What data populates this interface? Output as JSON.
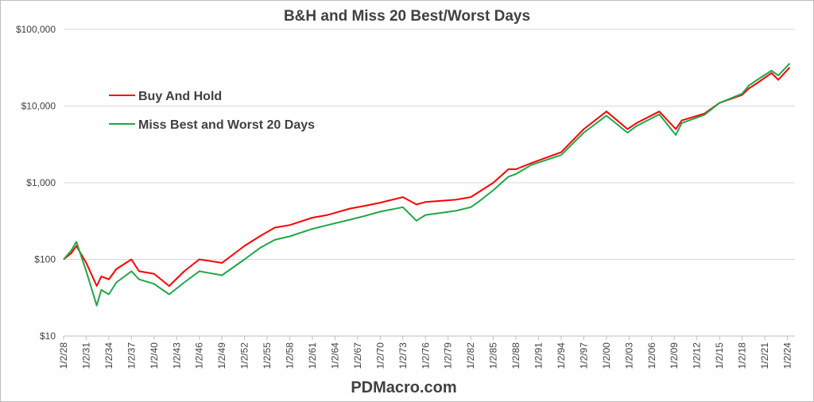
{
  "chart_data": {
    "type": "line",
    "title": "B&H and Miss 20 Best/Worst Days",
    "footer": "PDMacro.com",
    "y_scale": "log",
    "ylim": [
      10,
      100000
    ],
    "y_ticks": [
      10,
      100,
      1000,
      10000,
      100000
    ],
    "y_tick_labels": [
      "$10",
      "$100",
      "$1,000",
      "$10,000",
      "$100,000"
    ],
    "grid": "horizontal",
    "legend_position": "upper-left",
    "x_tick_labels": [
      "1/2/28",
      "1/2/31",
      "1/2/34",
      "1/2/37",
      "1/2/40",
      "1/2/43",
      "1/2/46",
      "1/2/49",
      "1/2/52",
      "1/2/55",
      "1/2/58",
      "1/2/61",
      "1/2/64",
      "1/2/67",
      "1/2/70",
      "1/2/73",
      "1/2/76",
      "1/2/79",
      "1/2/82",
      "1/2/85",
      "1/2/88",
      "1/2/91",
      "1/2/94",
      "1/2/97",
      "1/2/00",
      "1/2/03",
      "1/2/06",
      "1/2/09",
      "1/2/12",
      "1/2/15",
      "1/2/18",
      "1/2/21",
      "1/2/24"
    ],
    "x": [
      "1928",
      "1929",
      "1929.7",
      "1931",
      "1932.4",
      "1933",
      "1934",
      "1935",
      "1937",
      "1938",
      "1940",
      "1942",
      "1944",
      "1946",
      "1949",
      "1952",
      "1954",
      "1956",
      "1958",
      "1961",
      "1963",
      "1966",
      "1968",
      "1970",
      "1973",
      "1974.8",
      "1976",
      "1980",
      "1982",
      "1983",
      "1985",
      "1987",
      "1988",
      "1990",
      "1994",
      "1997",
      "2000",
      "2002.8",
      "2004",
      "2007",
      "2009.2",
      "2010",
      "2013",
      "2015",
      "2018",
      "2018.9",
      "2020",
      "2021.9",
      "2022.8",
      "2024.3"
    ],
    "series": [
      {
        "name": "Buy And Hold",
        "color": "#ff0000",
        "values": [
          100,
          120,
          150,
          90,
          45,
          60,
          55,
          75,
          100,
          70,
          65,
          45,
          70,
          100,
          90,
          150,
          200,
          260,
          280,
          350,
          380,
          460,
          500,
          550,
          650,
          520,
          560,
          600,
          650,
          750,
          1000,
          1500,
          1500,
          1800,
          2500,
          5000,
          8500,
          5000,
          6000,
          8500,
          5000,
          6500,
          8000,
          11000,
          14000,
          17000,
          20000,
          27000,
          22000,
          32000
        ]
      },
      {
        "name": "Miss Best and Worst 20 Days",
        "color": "#1fa64a",
        "values": [
          100,
          130,
          170,
          70,
          25,
          40,
          35,
          50,
          70,
          55,
          48,
          35,
          50,
          70,
          62,
          100,
          140,
          180,
          200,
          250,
          280,
          330,
          370,
          420,
          480,
          320,
          380,
          430,
          480,
          560,
          800,
          1200,
          1300,
          1700,
          2300,
          4500,
          7500,
          4500,
          5500,
          7800,
          4200,
          6000,
          7700,
          11000,
          14500,
          18500,
          22000,
          29000,
          25000,
          36000
        ]
      }
    ]
  }
}
